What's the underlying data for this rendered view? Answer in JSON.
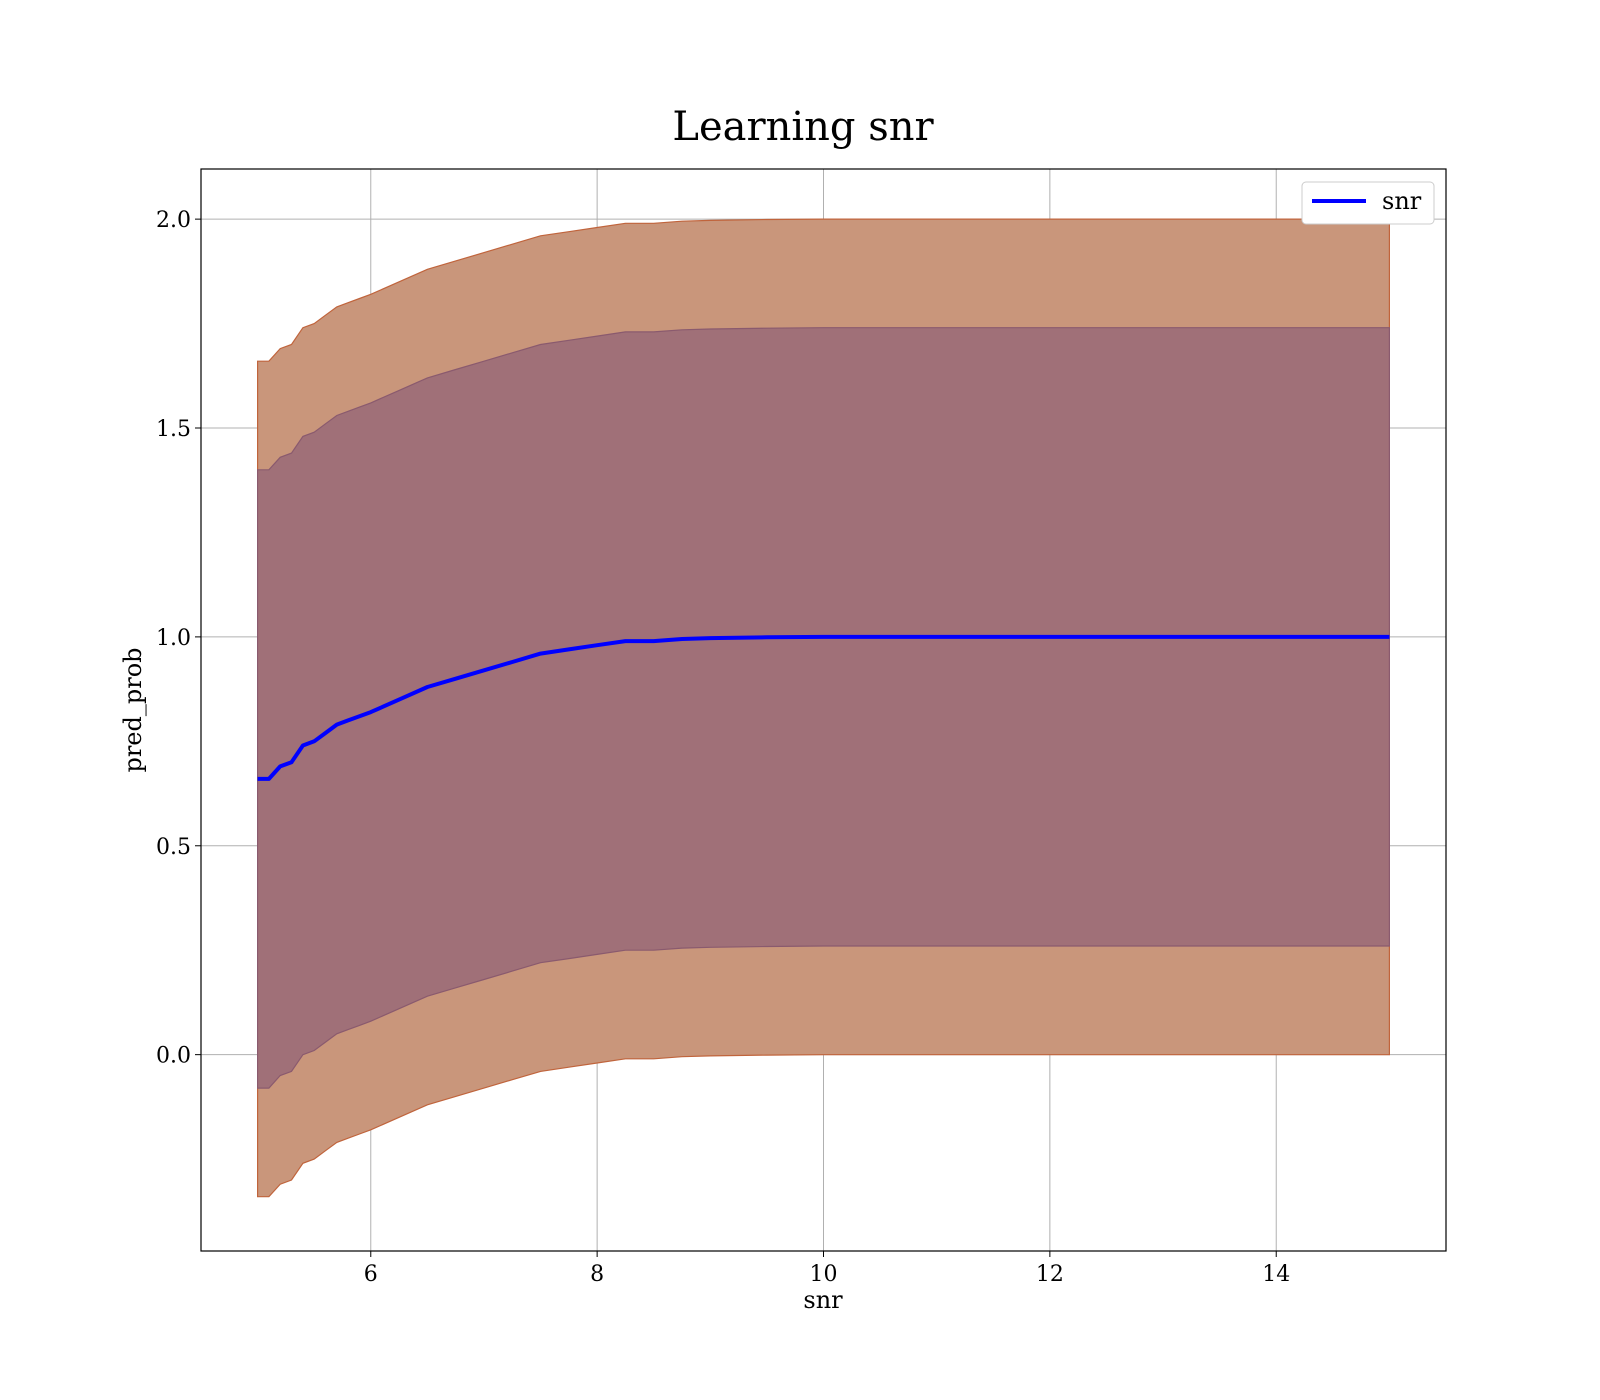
{
  "chart_data": {
    "type": "line",
    "title": "Learning snr",
    "xlabel": "snr",
    "ylabel": "pred_prob",
    "xlim": [
      4.5,
      15.5
    ],
    "ylim": [
      -0.47,
      2.12
    ],
    "xticks": [
      6,
      8,
      10,
      12,
      14
    ],
    "xtick_labels": [
      "6",
      "8",
      "10",
      "12",
      "14"
    ],
    "yticks": [
      0.0,
      0.5,
      1.0,
      1.5,
      2.0
    ],
    "ytick_labels": [
      "0.0",
      "0.5",
      "1.0",
      "1.5",
      "2.0"
    ],
    "grid": true,
    "legend_position": "top-right",
    "series": [
      {
        "name": "snr",
        "color": "#0000ff",
        "x": [
          5.0,
          5.1,
          5.2,
          5.3,
          5.4,
          5.5,
          5.6,
          5.7,
          5.8,
          5.9,
          6.0,
          6.25,
          6.5,
          6.75,
          7.0,
          7.25,
          7.5,
          7.75,
          8.0,
          8.25,
          8.5,
          8.75,
          9.0,
          9.5,
          10.0,
          10.5,
          11.0,
          12.0,
          13.0,
          14.0,
          15.0
        ],
        "values": [
          0.66,
          0.66,
          0.69,
          0.7,
          0.74,
          0.75,
          0.77,
          0.79,
          0.8,
          0.81,
          0.82,
          0.85,
          0.88,
          0.9,
          0.92,
          0.94,
          0.96,
          0.97,
          0.98,
          0.99,
          0.99,
          0.995,
          0.997,
          0.999,
          1.0,
          1.0,
          1.0,
          1.0,
          1.0,
          1.0,
          1.0
        ]
      }
    ],
    "bands": [
      {
        "color": "#c9967b",
        "edge_color": "#c0643c",
        "upper": [
          1.66,
          1.66,
          1.69,
          1.7,
          1.74,
          1.75,
          1.77,
          1.79,
          1.8,
          1.81,
          1.82,
          1.85,
          1.88,
          1.9,
          1.92,
          1.94,
          1.96,
          1.97,
          1.98,
          1.99,
          1.99,
          1.995,
          1.997,
          1.999,
          2.0,
          2.0,
          2.0,
          2.0,
          2.0,
          2.0,
          2.0
        ],
        "lower": [
          -0.34,
          -0.34,
          -0.31,
          -0.3,
          -0.26,
          -0.25,
          -0.23,
          -0.21,
          -0.2,
          -0.19,
          -0.18,
          -0.15,
          -0.12,
          -0.1,
          -0.08,
          -0.06,
          -0.04,
          -0.03,
          -0.02,
          -0.01,
          -0.01,
          -0.005,
          -0.003,
          -0.001,
          0.0,
          0.0,
          0.0,
          0.0,
          0.0,
          0.0,
          0.0
        ]
      },
      {
        "color": "#a07078",
        "edge_color": "#8a5a6e",
        "upper": [
          1.4,
          1.4,
          1.43,
          1.44,
          1.48,
          1.49,
          1.51,
          1.53,
          1.54,
          1.55,
          1.56,
          1.59,
          1.62,
          1.64,
          1.66,
          1.68,
          1.7,
          1.71,
          1.72,
          1.73,
          1.73,
          1.735,
          1.737,
          1.739,
          1.74,
          1.74,
          1.74,
          1.74,
          1.74,
          1.74,
          1.74
        ],
        "lower": [
          -0.08,
          -0.08,
          -0.05,
          -0.04,
          0.0,
          0.01,
          0.03,
          0.05,
          0.06,
          0.07,
          0.08,
          0.11,
          0.14,
          0.16,
          0.18,
          0.2,
          0.22,
          0.23,
          0.24,
          0.25,
          0.25,
          0.255,
          0.257,
          0.259,
          0.26,
          0.26,
          0.26,
          0.26,
          0.26,
          0.26,
          0.26
        ]
      }
    ]
  }
}
